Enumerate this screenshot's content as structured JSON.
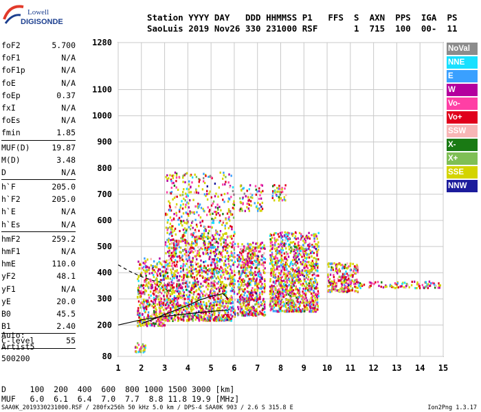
{
  "logo": {
    "line1": "Lowell",
    "line2": "DIGISONDE"
  },
  "header": {
    "line1": "Station YYYY DAY   DDD HHMMSS P1   FFS  S  AXN  PPS  IGA  PS",
    "line2": "SaoLuis 2019 Nov26 330 231000 RSF       1  715  100  00-  11"
  },
  "params": [
    {
      "k": "foF2",
      "v": "5.700"
    },
    {
      "k": "foF1",
      "v": "N/A"
    },
    {
      "k": "foF1p",
      "v": "N/A"
    },
    {
      "k": "foE",
      "v": "N/A"
    },
    {
      "k": "foEp",
      "v": "0.37"
    },
    {
      "k": "fxI",
      "v": "N/A"
    },
    {
      "k": "foEs",
      "v": "N/A"
    },
    {
      "k": "fmin",
      "v": "1.85",
      "sep": true
    },
    {
      "k": "MUF(D)",
      "v": "19.87"
    },
    {
      "k": "M(D)",
      "v": "3.48"
    },
    {
      "k": "D",
      "v": "N/A",
      "sep": true
    },
    {
      "k": "h`F",
      "v": "205.0"
    },
    {
      "k": "h`F2",
      "v": "205.0"
    },
    {
      "k": "h`E",
      "v": "N/A"
    },
    {
      "k": "h`Es",
      "v": "N/A",
      "sep": true
    },
    {
      "k": "hmF2",
      "v": "259.2"
    },
    {
      "k": "hmF1",
      "v": "N/A"
    },
    {
      "k": "hmE",
      "v": "110.0"
    },
    {
      "k": "yF2",
      "v": "48.1"
    },
    {
      "k": "yF1",
      "v": "N/A"
    },
    {
      "k": "yE",
      "v": "20.0"
    },
    {
      "k": "B0",
      "v": "45.5"
    },
    {
      "k": "B1",
      "v": "2.40",
      "sep": true
    },
    {
      "k": "C-level",
      "v": "55",
      "sep": true
    }
  ],
  "auto": {
    "line1": "Auto:",
    "line2": "Artist5",
    "line3": "500200"
  },
  "legend": [
    {
      "label": "NoVal",
      "color": "#8c8c8c"
    },
    {
      "label": "NNE",
      "color": "#19e0ff"
    },
    {
      "label": "E",
      "color": "#3aa0ff"
    },
    {
      "label": "W",
      "color": "#b4009e"
    },
    {
      "label": "Vo-",
      "color": "#ff3fa5"
    },
    {
      "label": "Vo+",
      "color": "#e0001c"
    },
    {
      "label": "SSW",
      "color": "#f7b6b6"
    },
    {
      "label": "X-",
      "color": "#1a7a14"
    },
    {
      "label": "X+",
      "color": "#7fbf55"
    },
    {
      "label": "SSE",
      "color": "#d4d400"
    },
    {
      "label": "NNW",
      "color": "#1c1c9c"
    }
  ],
  "dtable": {
    "line1": "D     100  200  400  600  800 1000 1500 3000 [km]",
    "line2": "MUF   6.0  6.1  6.4  7.0  7.7  8.8 11.8 19.9 [MHz]"
  },
  "footer": {
    "left": "SAA0K_2019330231000.RSF / 280fx256h 50 kHz 5.0 km / DPS-4 SAA0K 903 / 2.6 S 315.8 E",
    "right": "Ion2Png 1.3.17"
  },
  "chart_data": {
    "type": "scatter",
    "x_ticks": [
      1,
      2,
      3,
      4,
      5,
      6,
      7,
      8,
      9,
      10,
      11,
      12,
      13,
      14,
      15
    ],
    "xlim": [
      1,
      15
    ],
    "y_ticks": [
      80,
      200,
      300,
      400,
      500,
      600,
      700,
      800,
      900,
      1000,
      1100,
      1280
    ],
    "ylim": [
      80,
      1280
    ],
    "grid": true,
    "trace_lines": [
      {
        "name": "",
        "style": "solid",
        "x": [
          1.0,
          2.0,
          3.0,
          4.0,
          5.0,
          5.8
        ],
        "y": [
          200,
          220,
          233,
          243,
          252,
          258
        ]
      },
      {
        "name": "",
        "style": "solid",
        "x": [
          2.0,
          2.5,
          3.0,
          3.5,
          4.0,
          4.5,
          5.0,
          5.5,
          5.75
        ],
        "y": [
          205,
          222,
          240,
          258,
          275,
          295,
          310,
          320,
          300
        ]
      },
      {
        "name": "",
        "style": "dashed",
        "x": [
          1.0,
          1.5,
          2.0,
          2.5,
          3.0
        ],
        "y": [
          430,
          405,
          385,
          370,
          360
        ]
      }
    ],
    "echo_clusters": [
      {
        "x": [
          1.8,
          3.0
        ],
        "y": [
          200,
          460
        ],
        "n": 420
      },
      {
        "x": [
          3.0,
          6.0
        ],
        "y": [
          220,
          540
        ],
        "n": 1400
      },
      {
        "x": [
          3.0,
          6.0
        ],
        "y": [
          540,
          790
        ],
        "n": 380
      },
      {
        "x": [
          6.1,
          7.3
        ],
        "y": [
          240,
          520
        ],
        "n": 520
      },
      {
        "x": [
          6.2,
          7.2
        ],
        "y": [
          640,
          740
        ],
        "n": 70
      },
      {
        "x": [
          7.5,
          9.6
        ],
        "y": [
          255,
          560
        ],
        "n": 1100
      },
      {
        "x": [
          7.6,
          8.2
        ],
        "y": [
          680,
          740
        ],
        "n": 40
      },
      {
        "x": [
          10.0,
          11.3
        ],
        "y": [
          330,
          440
        ],
        "n": 240
      },
      {
        "x": [
          11.3,
          14.9
        ],
        "y": [
          345,
          370
        ],
        "n": 90
      },
      {
        "x": [
          1.7,
          2.2
        ],
        "y": [
          100,
          135
        ],
        "n": 30
      },
      {
        "x": [
          6.5,
          7.0
        ],
        "y": [
          300,
          480
        ],
        "n": 60
      }
    ]
  }
}
